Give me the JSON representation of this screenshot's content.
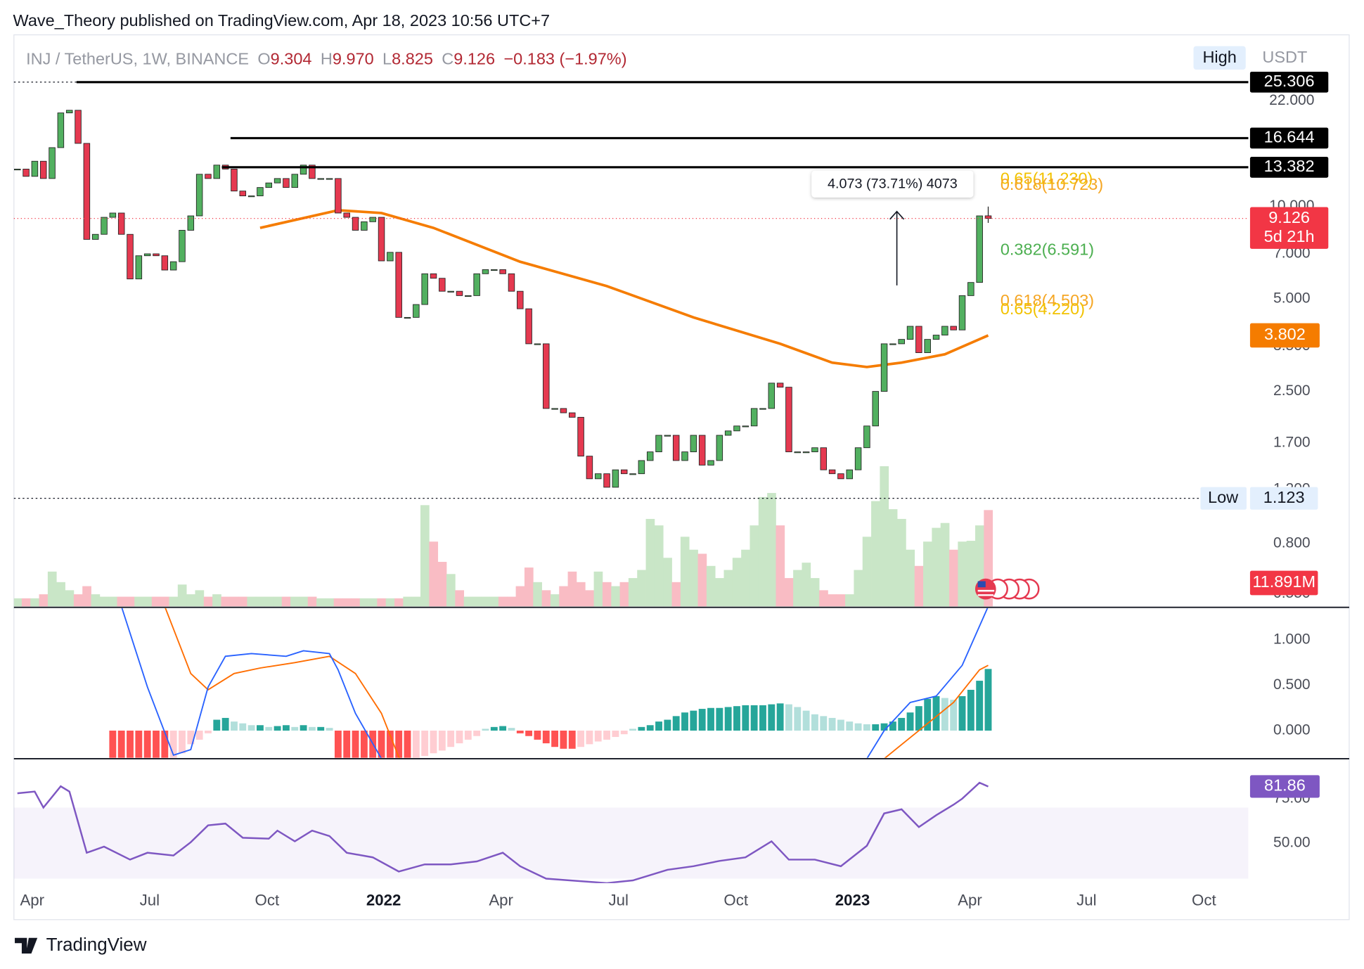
{
  "header": {
    "publisher": "Wave_Theory published on TradingView.com, Apr 18, 2023 10:56 UTC+7"
  },
  "footer": "TradingView",
  "chart_data": {
    "type": "candlestick",
    "symbol": "INJ / TetherUS, 1W, BINANCE",
    "ohlc": {
      "letters": [
        "O",
        "H",
        "L",
        "C"
      ],
      "values": [
        9.304,
        9.97,
        8.825,
        9.126
      ],
      "value_labels": [
        "9.304",
        "9.970",
        "8.825",
        "9.126"
      ]
    },
    "change_label": "−0.183 (−1.97%)",
    "currency": "USDT",
    "log_scale": true,
    "up_color": "#52b060",
    "down_color": "#e53950",
    "closes": [
      13.2,
      12.5,
      14.0,
      12.3,
      15.5,
      20.1,
      20.5,
      16.0,
      7.8,
      8.1,
      9.2,
      9.5,
      8.1,
      5.8,
      6.9,
      7.0,
      6.9,
      6.2,
      6.6,
      8.35,
      9.3,
      12.7,
      12.3,
      13.6,
      13.2,
      11.2,
      10.8,
      10.8,
      11.5,
      11.9,
      12.3,
      11.5,
      12.7,
      13.6,
      12.3,
      12.3,
      12.3,
      9.5,
      9.2,
      8.35,
      8.9,
      9.2,
      6.64,
      7.08,
      4.35,
      4.35,
      4.79,
      6.03,
      5.83,
      5.29,
      5.29,
      5.12,
      5.12,
      6.03,
      6.22,
      6.22,
      6.03,
      5.29,
      4.64,
      3.57,
      3.57,
      2.2,
      2.2,
      2.13,
      2.06,
      1.54,
      1.3,
      1.35,
      1.22,
      1.39,
      1.35,
      1.35,
      1.49,
      1.59,
      1.8,
      1.8,
      1.49,
      1.59,
      1.8,
      1.44,
      1.49,
      1.8,
      1.86,
      1.93,
      1.93,
      2.2,
      2.2,
      2.66,
      2.58,
      1.59,
      1.59,
      1.59,
      1.64,
      1.39,
      1.35,
      1.3,
      1.39,
      1.64,
      1.93,
      2.5,
      3.57,
      3.57,
      3.69,
      4.07,
      3.34,
      3.69,
      3.81,
      4.07,
      3.96,
      5.12,
      5.65,
      9.3
    ],
    "volumes": [
      1,
      1,
      1,
      1.5,
      4.3,
      3,
      2,
      1.5,
      2.5,
      1.5,
      1.2,
      1.2,
      1.2,
      1.2,
      1.2,
      1.2,
      1.2,
      1.2,
      1.2,
      2.7,
      1.5,
      2,
      1.2,
      1.5,
      1.2,
      1.2,
      1.2,
      1.2,
      1.2,
      1.2,
      1.2,
      1.2,
      1.2,
      1.2,
      1.2,
      1,
      1,
      1,
      1,
      1,
      1,
      1,
      1,
      1,
      1,
      1.2,
      1.2,
      12.5,
      8,
      5.5,
      4,
      2,
      1.2,
      1.2,
      1.2,
      1.2,
      1.2,
      1.2,
      2.5,
      4.8,
      3,
      2,
      1.5,
      2.5,
      4.3,
      3,
      2,
      4.3,
      3,
      2.5,
      3,
      3.5,
      4.5,
      10.8,
      10,
      6,
      3,
      8.6,
      7,
      6.5,
      5,
      3.5,
      4.5,
      6,
      7,
      10,
      13.5,
      14,
      10,
      3.5,
      4.5,
      5.4,
      3.5,
      2,
      1.5,
      1.5,
      1.5,
      4.5,
      8.6,
      13,
      17.3,
      12,
      10.8,
      7,
      5,
      8,
      9.7,
      10.3,
      7,
      8,
      8.1,
      10,
      11.891
    ],
    "volume_label": "11.891M",
    "volume_ylim": [
      0,
      70
    ],
    "ylim": [
      0.5,
      34.9
    ],
    "yticks": [
      {
        "value": 22,
        "label": "22.000"
      },
      {
        "value": 10,
        "label": "10.000"
      },
      {
        "value": 7,
        "label": "7.000"
      },
      {
        "value": 5,
        "label": "5.000"
      },
      {
        "value": 3.5,
        "label": "3.500"
      },
      {
        "value": 2.5,
        "label": "2.500"
      },
      {
        "value": 1.7,
        "label": "1.700"
      },
      {
        "value": 1.2,
        "label": "1.200"
      },
      {
        "value": 0.8,
        "label": "0.800"
      },
      {
        "value": 0.55,
        "label": "0.550"
      }
    ],
    "x_labels": [
      "Apr",
      "Jul",
      "Oct",
      "2022",
      "Apr",
      "Jul",
      "Oct",
      "2023",
      "Apr",
      "Jul",
      "Oct"
    ],
    "ma": {
      "color": "#f57c00",
      "x": [
        28,
        37,
        42,
        48,
        58,
        68,
        78,
        88,
        94,
        98,
        102,
        107,
        112
      ],
      "values": [
        8.5,
        9.7,
        9.5,
        8.5,
        6.6,
        5.5,
        4.35,
        3.57,
        3.1,
        3.0,
        3.1,
        3.3,
        3.802
      ]
    },
    "levels": [
      25.306,
      16.644,
      13.382
    ],
    "high_label": "High",
    "low_label": "Low",
    "low": 1.123,
    "countdown": "5d 21h",
    "fibs": [
      {
        "price": 11.23,
        "label": "0.65(11.230)",
        "color": "#f2c200"
      },
      {
        "price": 10.723,
        "label": "0.618(10.723)",
        "color": "#f5a623"
      },
      {
        "price": 6.591,
        "label": "0.382(6.591)",
        "color": "#4caf50"
      },
      {
        "price": 4.503,
        "label": "0.618(4.503)",
        "color": "#f5a623"
      },
      {
        "price": 4.22,
        "label": "0.65(4.220)",
        "color": "#f2c200"
      }
    ],
    "measure_label": "4.073 (73.71%) 4073",
    "macd": {
      "ylim": [
        -0.3,
        1.36
      ],
      "yticks": [
        {
          "value": 1,
          "label": "1.000"
        },
        {
          "value": 0.5,
          "label": "0.500"
        },
        {
          "value": 0,
          "label": "0.000"
        }
      ],
      "macd_line": {
        "color": "#2962ff",
        "x": [
          12,
          15,
          18,
          20,
          22,
          24,
          27,
          31,
          33,
          36,
          37,
          39,
          42,
          45,
          null,
          97,
          98,
          100,
          103,
          106,
          109,
          112
        ],
        "values": [
          1.37,
          0.48,
          -0.27,
          -0.21,
          0.48,
          0.82,
          0.85,
          0.82,
          0.88,
          0.85,
          0.67,
          0.19,
          -0.31,
          -0.6,
          null,
          -0.45,
          -0.31,
          0,
          0.31,
          0.38,
          0.72,
          1.37
        ]
      },
      "signal_line": {
        "color": "#ff6d00",
        "x": [
          17,
          20,
          22,
          25,
          28,
          32,
          36,
          39,
          42,
          44,
          46,
          null,
          99,
          100,
          104,
          108,
          111,
          112
        ],
        "values": [
          1.37,
          0.63,
          0.45,
          0.63,
          0.69,
          0.75,
          0.82,
          0.63,
          0.19,
          -0.29,
          -0.5,
          null,
          -0.45,
          -0.31,
          0,
          0.31,
          0.67,
          0.72
        ]
      },
      "histogram": [
        null,
        null,
        null,
        null,
        null,
        null,
        null,
        null,
        null,
        null,
        null,
        -0.35,
        -0.35,
        -0.35,
        -0.35,
        -0.35,
        -0.35,
        -0.35,
        -0.3,
        -0.25,
        -0.15,
        -0.1,
        -0.03,
        0.12,
        0.14,
        0.1,
        0.08,
        0.06,
        0.06,
        0.04,
        0.05,
        0.06,
        0.04,
        0.06,
        0.04,
        0.04,
        0.03,
        -0.35,
        -0.35,
        -0.35,
        -0.35,
        -0.35,
        -0.35,
        -0.35,
        -0.35,
        -0.35,
        -0.3,
        -0.28,
        -0.25,
        -0.22,
        -0.18,
        -0.14,
        -0.1,
        -0.06,
        0.02,
        0.04,
        0.05,
        0.03,
        -0.03,
        -0.06,
        -0.1,
        -0.14,
        -0.18,
        -0.2,
        -0.2,
        -0.18,
        -0.15,
        -0.12,
        -0.1,
        -0.07,
        -0.04,
        0.02,
        0.04,
        0.06,
        0.1,
        0.12,
        0.16,
        0.2,
        0.22,
        0.24,
        0.25,
        0.25,
        0.26,
        0.27,
        0.28,
        0.28,
        0.28,
        0.29,
        0.3,
        0.29,
        0.26,
        0.22,
        0.18,
        0.16,
        0.14,
        0.12,
        0.1,
        0.08,
        0.07,
        0.07,
        0.08,
        0.1,
        0.14,
        0.2,
        0.27,
        0.35,
        0.38,
        0.36,
        0.34,
        0.38,
        0.45,
        0.55,
        0.68
      ]
    },
    "rsi": {
      "color": "#7e57c2",
      "ylim": [
        27.5,
        97.5
      ],
      "band": [
        30,
        70
      ],
      "yticks": [
        {
          "value": 75,
          "label": "75.00"
        },
        {
          "value": 50,
          "label": "50.00"
        }
      ],
      "x": [
        0,
        2,
        3,
        5,
        6,
        8,
        10,
        13,
        15,
        18,
        20,
        22,
        24,
        26,
        29,
        30,
        32,
        34,
        36,
        38,
        41,
        44,
        47,
        50,
        53,
        56,
        58,
        61,
        68,
        71,
        75,
        78,
        81,
        84,
        87,
        89,
        92,
        95,
        98,
        100,
        102,
        104,
        106,
        108,
        109,
        111,
        112
      ],
      "values": [
        78,
        79,
        70,
        82,
        79,
        44.6,
        48,
        40.7,
        44.6,
        43,
        50.5,
        60,
        61,
        53,
        52.5,
        57,
        51,
        57,
        54,
        44.6,
        42,
        34,
        38,
        38,
        39.7,
        44.6,
        37,
        30,
        27.5,
        29,
        35,
        37,
        40,
        42,
        51,
        40.7,
        40.7,
        37,
        48.5,
        66.7,
        69,
        59,
        65.7,
        71.6,
        75,
        84,
        81.86
      ]
    }
  }
}
